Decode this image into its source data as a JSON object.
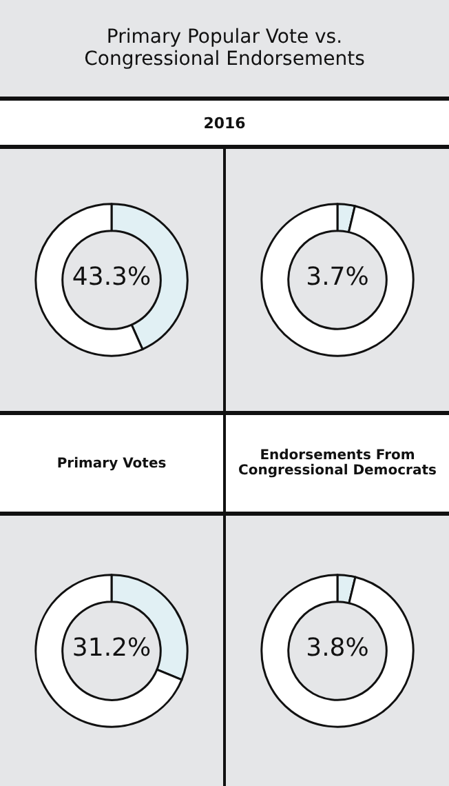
{
  "chart_data": [
    {
      "type": "donut",
      "title": "Primary Popular Vote vs. Congressional Endorsements",
      "subtitle": "2016",
      "categories": [
        null,
        null
      ],
      "values": [
        43.3,
        56.7
      ],
      "colors": [
        "#e1f0f4",
        "#ffffff"
      ],
      "annotations": [
        "43.3%"
      ]
    },
    {
      "type": "donut",
      "categories": [
        null,
        null
      ],
      "values": [
        3.7,
        96.3
      ],
      "colors": [
        "#e1f0f4",
        "#ffffff"
      ],
      "annotations": [
        "3.7%"
      ]
    },
    {
      "type": "donut",
      "title": "Primary Votes",
      "categories": [
        null,
        null
      ],
      "values": [
        31.2,
        68.8
      ],
      "colors": [
        "#e1f0f4",
        "#ffffff"
      ],
      "annotations": [
        "31.2%"
      ]
    },
    {
      "type": "donut",
      "title": "Endorsements From Congressional Democrats",
      "categories": [
        null,
        null
      ],
      "values": [
        3.8,
        96.2
      ],
      "colors": [
        "#e1f0f4",
        "#ffffff"
      ],
      "annotations": [
        "3.8%"
      ]
    }
  ]
}
